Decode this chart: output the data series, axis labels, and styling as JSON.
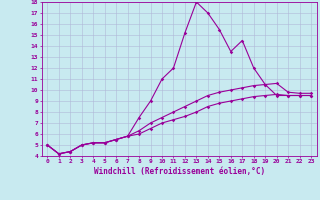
{
  "xlabel": "Windchill (Refroidissement éolien,°C)",
  "bg_color": "#c8eaf0",
  "grid_color": "#b0b8d8",
  "line_color": "#990099",
  "x": [
    0,
    1,
    2,
    3,
    4,
    5,
    6,
    7,
    8,
    9,
    10,
    11,
    12,
    13,
    14,
    15,
    16,
    17,
    18,
    19,
    20,
    21,
    22,
    23
  ],
  "line1": [
    5.0,
    4.2,
    4.4,
    5.0,
    5.2,
    5.2,
    5.5,
    5.8,
    7.5,
    9.0,
    11.0,
    12.0,
    15.2,
    18.0,
    17.0,
    15.5,
    13.5,
    14.5,
    12.0,
    10.5,
    9.5,
    9.5,
    9.5,
    9.5
  ],
  "line2": [
    5.0,
    4.2,
    4.4,
    5.0,
    5.2,
    5.2,
    5.5,
    5.8,
    6.3,
    7.0,
    7.5,
    8.0,
    8.5,
    9.0,
    9.5,
    9.8,
    10.0,
    10.2,
    10.4,
    10.5,
    10.6,
    9.8,
    9.7,
    9.7
  ],
  "line3": [
    5.0,
    4.2,
    4.4,
    5.0,
    5.2,
    5.2,
    5.5,
    5.8,
    6.0,
    6.5,
    7.0,
    7.3,
    7.6,
    8.0,
    8.5,
    8.8,
    9.0,
    9.2,
    9.4,
    9.5,
    9.6,
    9.5,
    9.5,
    9.5
  ],
  "ylim": [
    4,
    18
  ],
  "yticks": [
    4,
    5,
    6,
    7,
    8,
    9,
    10,
    11,
    12,
    13,
    14,
    15,
    16,
    17,
    18
  ],
  "xticks": [
    0,
    1,
    2,
    3,
    4,
    5,
    6,
    7,
    8,
    9,
    10,
    11,
    12,
    13,
    14,
    15,
    16,
    17,
    18,
    19,
    20,
    21,
    22,
    23
  ],
  "marker": "D",
  "marker_size": 1.8,
  "line_width": 0.8,
  "tick_font_size": 4.5,
  "xlabel_font_size": 5.5
}
